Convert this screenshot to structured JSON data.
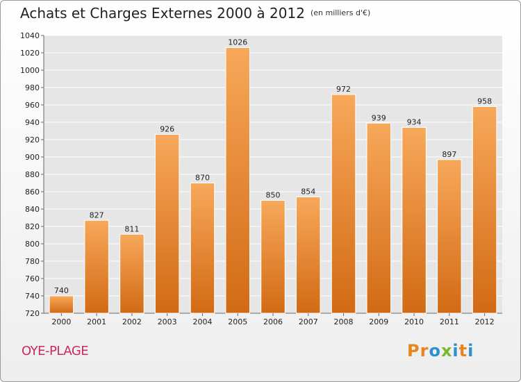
{
  "header": {
    "title": "Achats et Charges Externes 2000 à 2012",
    "unit": "(en milliers d'€)"
  },
  "footer": {
    "commune": "OYE-PLAGE",
    "logo_letters": [
      "P",
      "r",
      "o",
      "x",
      "i",
      "t",
      "i"
    ]
  },
  "colors": {
    "bar_top": "#f7a85a",
    "bar_bottom": "#d26a14",
    "plot_bg": "#e6e6e6",
    "grid": "#ffffff",
    "commune": "#cc2a5c",
    "logo": [
      "#e8851c",
      "#e8851c",
      "#2a8fd4",
      "#7ab82d",
      "#2a8fd4",
      "#e8851c",
      "#2a8fd4"
    ]
  },
  "chart_data": {
    "type": "bar",
    "title": "Achats et Charges Externes 2000 à 2012",
    "subtitle": "(en milliers d'€)",
    "categories": [
      "2000",
      "2001",
      "2002",
      "2003",
      "2004",
      "2005",
      "2006",
      "2007",
      "2008",
      "2009",
      "2010",
      "2011",
      "2012"
    ],
    "values": [
      740,
      827,
      811,
      926,
      870,
      1026,
      850,
      854,
      972,
      939,
      934,
      897,
      958
    ],
    "ylim": [
      720,
      1040
    ],
    "yticks": [
      720,
      740,
      760,
      780,
      800,
      820,
      840,
      860,
      880,
      900,
      920,
      940,
      960,
      980,
      1000,
      1020,
      1040
    ],
    "grid": true,
    "legend": "none"
  }
}
